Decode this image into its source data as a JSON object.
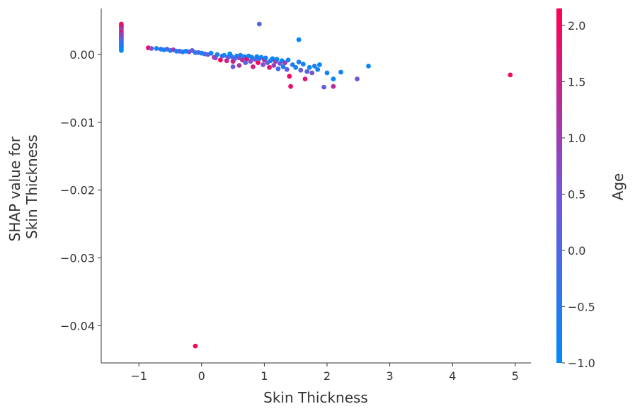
{
  "chart_data": {
    "type": "scatter",
    "title": "",
    "xlabel": "Skin Thickness",
    "ylabel_lines": [
      "SHAP value for",
      "Skin Thickness"
    ],
    "xlim": [
      -1.6,
      5.25
    ],
    "ylim": [
      -0.0455,
      0.0068
    ],
    "x_ticks": [
      -1,
      0,
      1,
      2,
      3,
      4,
      5
    ],
    "x_tick_labels": [
      "−1",
      "0",
      "1",
      "2",
      "3",
      "4",
      "5"
    ],
    "y_ticks": [
      0.0,
      -0.01,
      -0.02,
      -0.03,
      -0.04
    ],
    "y_tick_labels": [
      "0.00",
      "−0.01",
      "−0.02",
      "−0.03",
      "−0.04"
    ],
    "grid": false,
    "color_feature": "Age",
    "colorbar": {
      "label": "Age",
      "range": [
        -1.0,
        2.15
      ],
      "ticks": [
        2.0,
        1.5,
        1.0,
        0.5,
        0.0,
        -0.5,
        -1.0
      ],
      "tick_labels": [
        "2.0",
        "1.5",
        "1.0",
        "0.5",
        "0.0",
        "−0.5",
        "−1.0"
      ],
      "color_low": "#008bfb",
      "color_mid": "#7c52d6",
      "color_high": "#ff0052"
    },
    "points": [
      {
        "x": -1.28,
        "y": 0.0045,
        "c": 2.0
      },
      {
        "x": -1.28,
        "y": 0.0043,
        "c": 1.6
      },
      {
        "x": -1.28,
        "y": 0.0041,
        "c": 1.8
      },
      {
        "x": -1.28,
        "y": 0.0038,
        "c": 1.2
      },
      {
        "x": -1.28,
        "y": 0.0035,
        "c": 0.9
      },
      {
        "x": -1.28,
        "y": 0.0032,
        "c": 1.9
      },
      {
        "x": -1.28,
        "y": 0.003,
        "c": 0.6
      },
      {
        "x": -1.28,
        "y": 0.0028,
        "c": 1.4
      },
      {
        "x": -1.28,
        "y": 0.0026,
        "c": 0.3
      },
      {
        "x": -1.28,
        "y": 0.0024,
        "c": 1.0
      },
      {
        "x": -1.28,
        "y": 0.0022,
        "c": -0.2
      },
      {
        "x": -1.28,
        "y": 0.002,
        "c": 0.4
      },
      {
        "x": -1.28,
        "y": 0.0018,
        "c": -0.5
      },
      {
        "x": -1.28,
        "y": 0.0016,
        "c": 0.1
      },
      {
        "x": -1.28,
        "y": 0.0014,
        "c": -0.8
      },
      {
        "x": -1.28,
        "y": 0.0012,
        "c": -0.3
      },
      {
        "x": -1.28,
        "y": 0.001,
        "c": -0.9
      },
      {
        "x": -1.28,
        "y": 0.0008,
        "c": -0.6
      },
      {
        "x": -1.28,
        "y": 0.0006,
        "c": -1.0
      },
      {
        "x": -0.85,
        "y": 0.001,
        "c": 1.9
      },
      {
        "x": -0.8,
        "y": 0.0009,
        "c": 0.5
      },
      {
        "x": -0.72,
        "y": 0.0009,
        "c": -0.7
      },
      {
        "x": -0.65,
        "y": 0.0008,
        "c": -0.4
      },
      {
        "x": -0.6,
        "y": 0.0007,
        "c": -0.9
      },
      {
        "x": -0.55,
        "y": 0.0008,
        "c": 0.2
      },
      {
        "x": -0.5,
        "y": 0.0006,
        "c": -0.6
      },
      {
        "x": -0.45,
        "y": 0.0007,
        "c": 1.1
      },
      {
        "x": -0.4,
        "y": 0.0005,
        "c": -0.8
      },
      {
        "x": -0.35,
        "y": 0.0005,
        "c": 0.0
      },
      {
        "x": -0.3,
        "y": 0.0004,
        "c": -0.5
      },
      {
        "x": -0.25,
        "y": 0.0005,
        "c": -1.0
      },
      {
        "x": -0.2,
        "y": 0.0004,
        "c": 0.6
      },
      {
        "x": -0.15,
        "y": 0.0006,
        "c": 0.3
      },
      {
        "x": -0.1,
        "y": 0.0003,
        "c": -0.7
      },
      {
        "x": -0.05,
        "y": 0.0003,
        "c": 0.1
      },
      {
        "x": 0.0,
        "y": 0.0002,
        "c": -0.8
      },
      {
        "x": 0.05,
        "y": 0.0001,
        "c": -0.3
      },
      {
        "x": 0.1,
        "y": 0.0,
        "c": 0.4
      },
      {
        "x": 0.15,
        "y": 0.0002,
        "c": -0.9
      },
      {
        "x": 0.2,
        "y": -0.0004,
        "c": 1.2
      },
      {
        "x": 0.22,
        "y": -0.0005,
        "c": 0.8
      },
      {
        "x": 0.25,
        "y": 0.0,
        "c": -0.6
      },
      {
        "x": 0.3,
        "y": -0.0008,
        "c": 2.0
      },
      {
        "x": 0.33,
        "y": -0.0002,
        "c": -0.2
      },
      {
        "x": 0.36,
        "y": -0.0001,
        "c": -0.9
      },
      {
        "x": 0.4,
        "y": -0.0009,
        "c": 1.5
      },
      {
        "x": 0.42,
        "y": -0.0004,
        "c": 0.5
      },
      {
        "x": 0.45,
        "y": 0.0001,
        "c": -1.0
      },
      {
        "x": 0.48,
        "y": -0.0003,
        "c": -0.4
      },
      {
        "x": 0.5,
        "y": -0.001,
        "c": 1.7
      },
      {
        "x": 0.53,
        "y": -0.0006,
        "c": 0.2
      },
      {
        "x": 0.56,
        "y": -0.0002,
        "c": -0.7
      },
      {
        "x": 0.6,
        "y": -0.0005,
        "c": 0.9
      },
      {
        "x": 0.62,
        "y": -0.0001,
        "c": -0.5
      },
      {
        "x": 0.65,
        "y": -0.0008,
        "c": 1.3
      },
      {
        "x": 0.68,
        "y": -0.0003,
        "c": -0.8
      },
      {
        "x": 0.5,
        "y": -0.0018,
        "c": 0.4
      },
      {
        "x": 0.6,
        "y": -0.0016,
        "c": 1.1
      },
      {
        "x": 0.7,
        "y": -0.0012,
        "c": 0.0
      },
      {
        "x": 0.72,
        "y": -0.0006,
        "c": 1.9
      },
      {
        "x": 0.75,
        "y": -0.0002,
        "c": -0.6
      },
      {
        "x": 0.78,
        "y": -0.001,
        "c": 0.7
      },
      {
        "x": 0.8,
        "y": -0.0004,
        "c": -0.9
      },
      {
        "x": 0.82,
        "y": -0.0018,
        "c": 1.6
      },
      {
        "x": 0.85,
        "y": -0.0007,
        "c": 0.3
      },
      {
        "x": 0.88,
        "y": -0.0003,
        "c": -1.0
      },
      {
        "x": 0.9,
        "y": -0.0012,
        "c": 2.0
      },
      {
        "x": 0.92,
        "y": -0.0006,
        "c": -0.3
      },
      {
        "x": 0.95,
        "y": -0.0004,
        "c": -0.7
      },
      {
        "x": 0.98,
        "y": -0.0015,
        "c": 0.6
      },
      {
        "x": 1.0,
        "y": -0.0008,
        "c": 1.4
      },
      {
        "x": 1.02,
        "y": -0.0005,
        "c": -0.8
      },
      {
        "x": 1.05,
        "y": -0.0012,
        "c": 0.1
      },
      {
        "x": 1.08,
        "y": -0.0019,
        "c": 1.8
      },
      {
        "x": 1.1,
        "y": -0.0009,
        "c": -0.5
      },
      {
        "x": 1.13,
        "y": -0.0006,
        "c": -0.9
      },
      {
        "x": 1.15,
        "y": -0.0016,
        "c": 0.9
      },
      {
        "x": 1.18,
        "y": -0.001,
        "c": 1.2
      },
      {
        "x": 1.2,
        "y": -0.0007,
        "c": -0.6
      },
      {
        "x": 1.22,
        "y": -0.0021,
        "c": -0.2
      },
      {
        "x": 1.25,
        "y": -0.0013,
        "c": 0.5
      },
      {
        "x": 1.28,
        "y": -0.0009,
        "c": -1.0
      },
      {
        "x": 1.3,
        "y": -0.0018,
        "c": -0.7
      },
      {
        "x": 1.33,
        "y": -0.0012,
        "c": 1.0
      },
      {
        "x": 1.36,
        "y": -0.0022,
        "c": 0.2
      },
      {
        "x": 1.38,
        "y": -0.0008,
        "c": -0.8
      },
      {
        "x": 1.4,
        "y": -0.0032,
        "c": 2.0
      },
      {
        "x": 1.42,
        "y": -0.0047,
        "c": 1.9
      },
      {
        "x": 1.45,
        "y": -0.0015,
        "c": -0.4
      },
      {
        "x": 1.5,
        "y": -0.0019,
        "c": -0.9
      },
      {
        "x": 1.55,
        "y": -0.0011,
        "c": -0.6
      },
      {
        "x": 1.58,
        "y": -0.0023,
        "c": 0.3
      },
      {
        "x": 1.62,
        "y": -0.0014,
        "c": -0.8
      },
      {
        "x": 1.65,
        "y": -0.0036,
        "c": 1.7
      },
      {
        "x": 1.68,
        "y": -0.0025,
        "c": 0.0
      },
      {
        "x": 1.72,
        "y": -0.0019,
        "c": -1.0
      },
      {
        "x": 1.76,
        "y": -0.0027,
        "c": 0.6
      },
      {
        "x": 1.8,
        "y": -0.0017,
        "c": -0.5
      },
      {
        "x": 1.85,
        "y": -0.0022,
        "c": -0.8
      },
      {
        "x": 1.88,
        "y": -0.0015,
        "c": -0.9
      },
      {
        "x": 1.95,
        "y": -0.0048,
        "c": 0.2
      },
      {
        "x": 2.0,
        "y": -0.0027,
        "c": -0.7
      },
      {
        "x": 2.1,
        "y": -0.0036,
        "c": -0.9
      },
      {
        "x": 2.1,
        "y": -0.0047,
        "c": 1.3
      },
      {
        "x": 2.22,
        "y": -0.0026,
        "c": -0.8
      },
      {
        "x": 2.48,
        "y": -0.0036,
        "c": 0.4
      },
      {
        "x": 2.66,
        "y": -0.0017,
        "c": -0.9
      },
      {
        "x": 0.92,
        "y": 0.0045,
        "c": 0.0
      },
      {
        "x": 1.55,
        "y": 0.0022,
        "c": -0.9
      },
      {
        "x": 4.92,
        "y": -0.003,
        "c": 2.0
      },
      {
        "x": -0.1,
        "y": -0.043,
        "c": 2.0
      }
    ]
  }
}
